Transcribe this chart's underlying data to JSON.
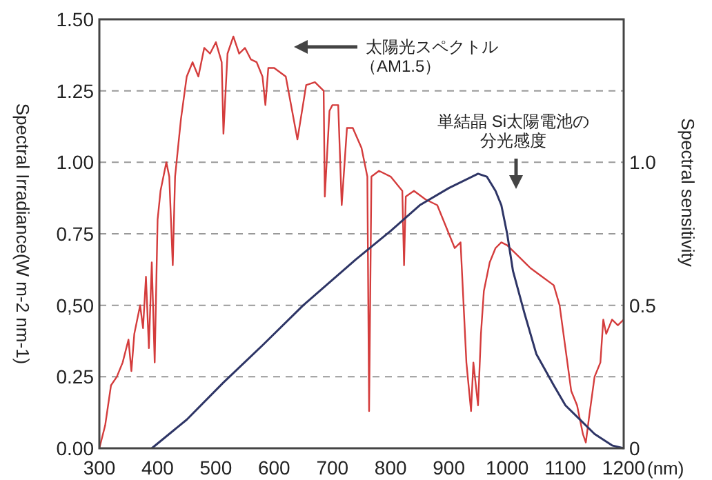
{
  "chart_data": {
    "type": "line",
    "xlabel": "(nm)",
    "ylabel": "Spectral Irradiance(W m-2 nm-1)",
    "y2label": "Spectral sensitivity",
    "xlim": [
      300,
      1200
    ],
    "xticks": [
      300,
      400,
      500,
      600,
      700,
      800,
      900,
      1000,
      1100,
      1200
    ],
    "ylim": [
      0,
      1.5
    ],
    "yticks": [
      {
        "value": 0,
        "label": "0.00"
      },
      {
        "value": 0.25,
        "label": "0.25"
      },
      {
        "value": 0.5,
        "label": "0,50"
      },
      {
        "value": 0.75,
        "label": "0.75"
      },
      {
        "value": 1,
        "label": "1.00"
      },
      {
        "value": 1.25,
        "label": "1.25"
      },
      {
        "value": 1.5,
        "label": "1.50"
      }
    ],
    "y2lim": [
      0,
      1.5
    ],
    "y2ticks": [
      0,
      0.5,
      {
        "value": 1,
        "label": "1.0"
      }
    ],
    "grid": "y",
    "marker": "none",
    "line_style": "solid",
    "series": [
      {
        "color": "#d43c3c",
        "x": [
          300,
          310,
          320,
          330,
          340,
          350,
          355,
          360,
          370,
          375,
          380,
          385,
          390,
          395,
          400,
          405,
          410,
          415,
          420,
          426,
          430,
          440,
          450,
          460,
          470,
          480,
          490,
          500,
          510,
          513,
          520,
          530,
          540,
          550,
          560,
          570,
          580,
          585,
          590,
          600,
          620,
          640,
          655,
          670,
          685,
          687,
          695,
          700,
          710,
          716,
          725,
          735,
          750,
          760,
          763,
          767,
          780,
          800,
          820,
          823,
          826,
          840,
          860,
          880,
          890,
          900,
          910,
          920,
          930,
          938,
          942,
          950,
          955,
          960,
          970,
          980,
          990,
          1000,
          1020,
          1040,
          1060,
          1080,
          1090,
          1100,
          1110,
          1120,
          1130,
          1135,
          1140,
          1150,
          1160,
          1165,
          1170,
          1180,
          1190,
          1200
        ],
        "values": [
          0,
          0.08,
          0.22,
          0.25,
          0.3,
          0.38,
          0.27,
          0.4,
          0.5,
          0.42,
          0.6,
          0.35,
          0.65,
          0.3,
          0.8,
          0.9,
          0.95,
          1.0,
          0.95,
          0.64,
          0.95,
          1.15,
          1.3,
          1.35,
          1.3,
          1.4,
          1.38,
          1.42,
          1.35,
          1.1,
          1.38,
          1.44,
          1.38,
          1.4,
          1.36,
          1.35,
          1.3,
          1.2,
          1.33,
          1.33,
          1.3,
          1.08,
          1.27,
          1.28,
          1.25,
          0.88,
          1.18,
          1.2,
          1.2,
          0.85,
          1.12,
          1.12,
          1.05,
          0.95,
          0.13,
          0.95,
          0.97,
          0.95,
          0.9,
          0.64,
          0.88,
          0.9,
          0.87,
          0.85,
          0.8,
          0.75,
          0.7,
          0.72,
          0.3,
          0.13,
          0.3,
          0.15,
          0.4,
          0.55,
          0.65,
          0.7,
          0.72,
          0.71,
          0.67,
          0.63,
          0.6,
          0.57,
          0.5,
          0.35,
          0.2,
          0.15,
          0.05,
          0.02,
          0.1,
          0.25,
          0.3,
          0.45,
          0.4,
          0.45,
          0.43,
          0.45
        ]
      },
      {
        "color": "#2e3566",
        "axis": "y2",
        "x": [
          390,
          450,
          513,
          580,
          650,
          740,
          800,
          850,
          900,
          950,
          965,
          980,
          990,
          1000,
          1010,
          1030,
          1050,
          1080,
          1100,
          1130,
          1150,
          1180,
          1200
        ],
        "values": [
          0,
          0.1,
          0.23,
          0.36,
          0.5,
          0.66,
          0.76,
          0.85,
          0.91,
          0.96,
          0.95,
          0.9,
          0.85,
          0.75,
          0.62,
          0.47,
          0.33,
          0.22,
          0.15,
          0.09,
          0.05,
          0.01,
          0
        ]
      }
    ],
    "annotations": [
      "太陽光スペクトル（AM1.5）",
      "単結晶 Si太陽電池の分光感度"
    ]
  }
}
